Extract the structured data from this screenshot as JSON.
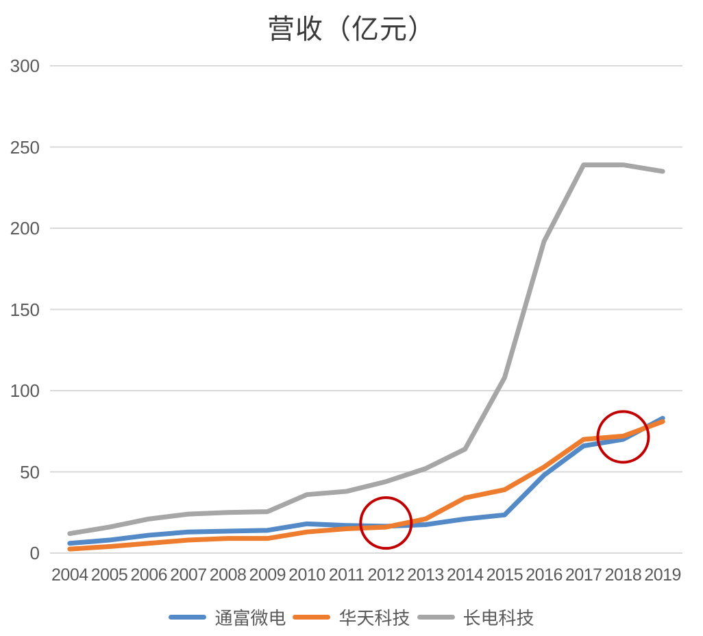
{
  "chart_data": {
    "type": "line",
    "title": "营收（亿元）",
    "xlabel": "",
    "ylabel": "",
    "categories": [
      "2004",
      "2005",
      "2006",
      "2007",
      "2008",
      "2009",
      "2010",
      "2011",
      "2012",
      "2013",
      "2014",
      "2015",
      "2016",
      "2017",
      "2018",
      "2019"
    ],
    "series": [
      {
        "name": "通富微电",
        "color": "#5289C6",
        "values": [
          6,
          8,
          11,
          13,
          13.5,
          14,
          18,
          17,
          16.5,
          17.5,
          21,
          23.5,
          48,
          66,
          70,
          83
        ]
      },
      {
        "name": "华天科技",
        "color": "#ED7C2F",
        "values": [
          2.5,
          4,
          6,
          8,
          9,
          9,
          13,
          15,
          16,
          21,
          34,
          39,
          53,
          70,
          72,
          81
        ]
      },
      {
        "name": "长电科技",
        "color": "#A6A6A6",
        "values": [
          12,
          16,
          21,
          24,
          25,
          25.5,
          36,
          38,
          44,
          52,
          64,
          108,
          192,
          239,
          239,
          235
        ]
      }
    ],
    "ylim": [
      0,
      300
    ],
    "yticks": [
      0,
      50,
      100,
      150,
      200,
      250,
      300
    ],
    "grid": "horizontal",
    "legend_position": "bottom",
    "annotations": [
      {
        "type": "circle",
        "category": "2012",
        "value": 18.5,
        "radius_px": 37,
        "color": "#C00000",
        "note": "crossover of 通富微电 and 华天科技"
      },
      {
        "type": "circle",
        "category": "2018",
        "value": 71.5,
        "radius_px": 37,
        "color": "#C00000",
        "note": "crossover of 通富微电 and 华天科技"
      }
    ],
    "colors": {
      "gridline": "#D9D9D9",
      "tick_label": "#595959",
      "title": "#3A3A3A",
      "background": "#FFFFFF"
    }
  }
}
